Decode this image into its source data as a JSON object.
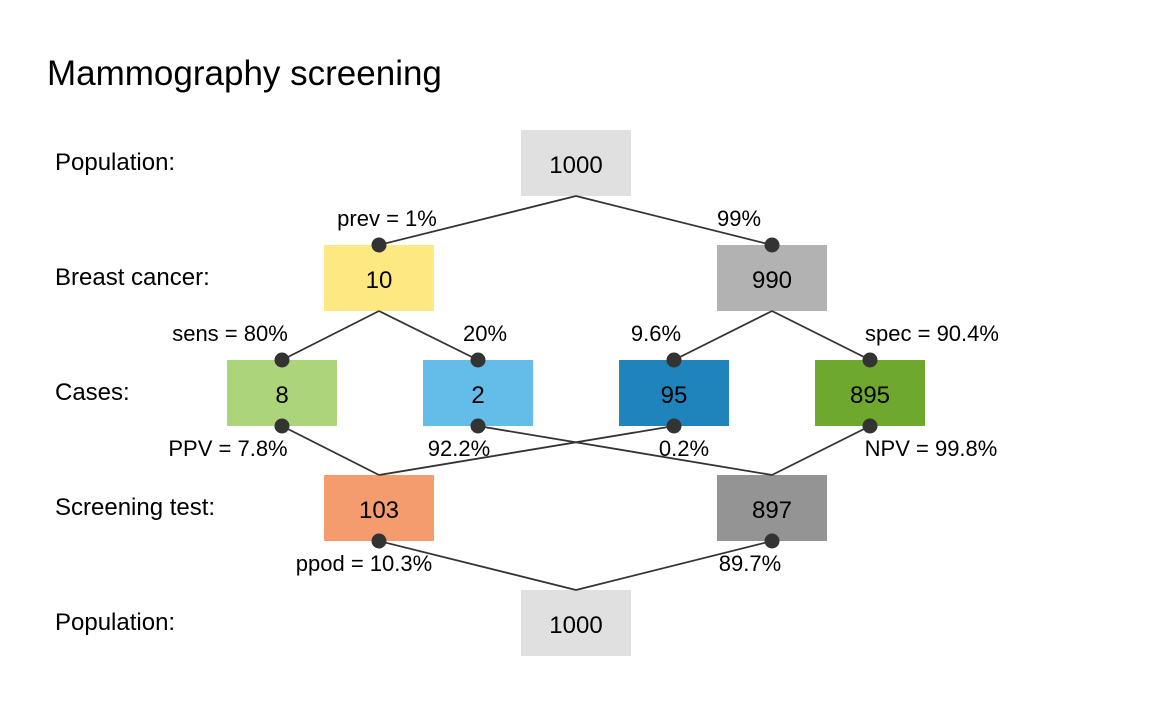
{
  "title": "Mammography screening",
  "row_labels": {
    "population_top": "Population:",
    "breast_cancer": "Breast cancer:",
    "cases": "Cases:",
    "screening_test": "Screening test:",
    "population_bottom": "Population:"
  },
  "boxes": {
    "population_top": {
      "value": "1000",
      "color": "#e0e0e0"
    },
    "cancer_yes": {
      "value": "10",
      "color": "#fee882"
    },
    "cancer_no": {
      "value": "990",
      "color": "#b2b2b2"
    },
    "true_pos": {
      "value": "8",
      "color": "#acd57b"
    },
    "false_neg": {
      "value": "2",
      "color": "#64bce9"
    },
    "false_pos": {
      "value": "95",
      "color": "#1f84bc"
    },
    "true_neg": {
      "value": "895",
      "color": "#6ea82e"
    },
    "test_pos": {
      "value": "103",
      "color": "#f49c6e"
    },
    "test_neg": {
      "value": "897",
      "color": "#949494"
    },
    "population_bottom": {
      "value": "1000",
      "color": "#e0e0e0"
    }
  },
  "edge_labels": {
    "prev": "prev = 1%",
    "not_prev": "99%",
    "sens": "sens = 80%",
    "miss": "20%",
    "false_alarm": "9.6%",
    "spec": "spec = 90.4%",
    "ppv": "PPV = 7.8%",
    "one_minus_ppv": "92.2%",
    "one_minus_npv": "0.2%",
    "npv": "NPV = 99.8%",
    "ppod": "ppod = 10.3%",
    "one_minus_ppod": "89.7%"
  }
}
